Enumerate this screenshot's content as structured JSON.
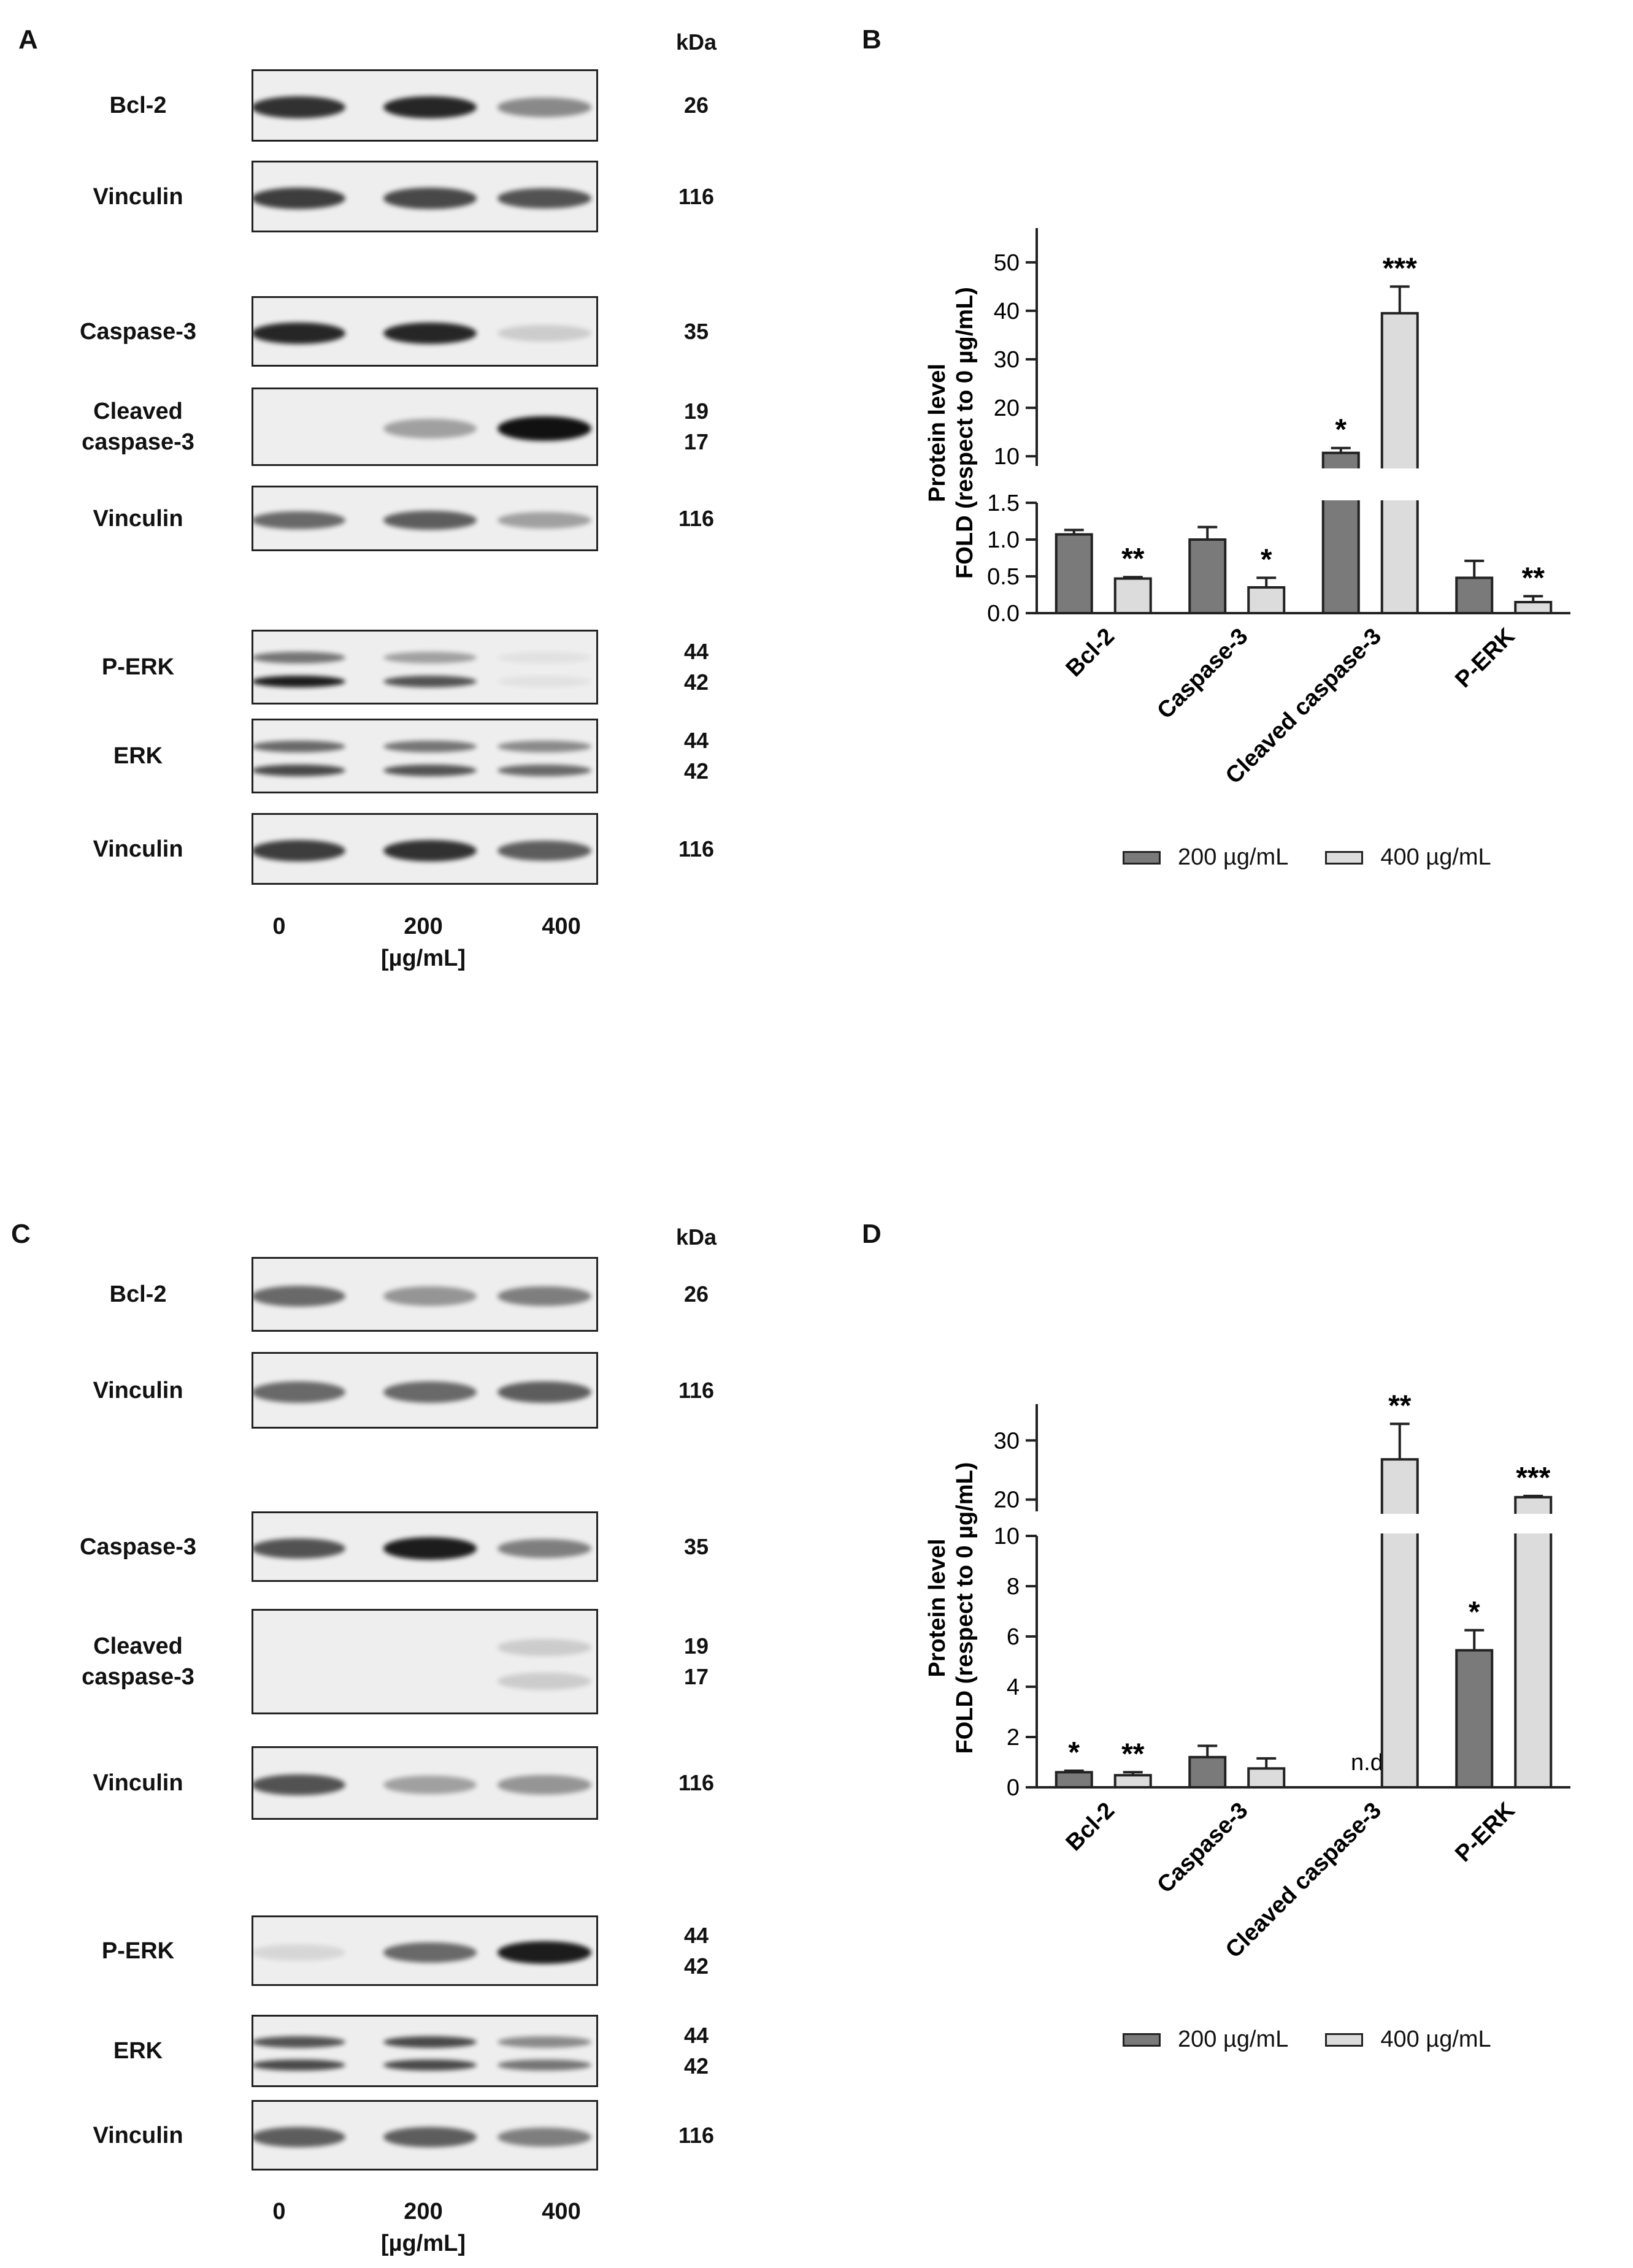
{
  "colors": {
    "series_200": "#7a7a7a",
    "series_400": "#dcdcdc",
    "band": "#111111",
    "blot_bg": "#eeeeee"
  },
  "panelA": {
    "letter": "A",
    "kda_header": "kDa",
    "lanes": [
      "0",
      "200",
      "400"
    ],
    "unit": "[µg/mL]",
    "blots": [
      {
        "label": "Bcl-2",
        "kda": "26",
        "bands": [
          [
            0.85
          ],
          [
            0.9
          ],
          [
            0.45
          ]
        ]
      },
      {
        "label": "Vinculin",
        "kda": "116",
        "bands": [
          [
            0.8
          ],
          [
            0.75
          ],
          [
            0.7
          ]
        ]
      },
      {
        "label": "Caspase-3",
        "kda": "35",
        "bands": [
          [
            0.9
          ],
          [
            0.9
          ],
          [
            0.15
          ]
        ]
      },
      {
        "label": "Cleaved caspase-3",
        "kda": "19\n17",
        "bands": [
          [
            0.0
          ],
          [
            0.35
          ],
          [
            1.0
          ]
        ]
      },
      {
        "label": "Vinculin",
        "kda": "116",
        "bands": [
          [
            0.6
          ],
          [
            0.65
          ],
          [
            0.35
          ]
        ]
      },
      {
        "label": "P-ERK",
        "kda": "44\n42",
        "bands": [
          [
            0.55,
            0.95
          ],
          [
            0.35,
            0.7
          ],
          [
            0.05,
            0.05
          ]
        ]
      },
      {
        "label": "ERK",
        "kda": "44\n42",
        "bands": [
          [
            0.6,
            0.75
          ],
          [
            0.55,
            0.7
          ],
          [
            0.45,
            0.6
          ]
        ]
      },
      {
        "label": "Vinculin",
        "kda": "116",
        "bands": [
          [
            0.8
          ],
          [
            0.85
          ],
          [
            0.65
          ]
        ]
      }
    ]
  },
  "panelC": {
    "letter": "C",
    "kda_header": "kDa",
    "lanes": [
      "0",
      "200",
      "400"
    ],
    "unit": "[µg/mL]",
    "blots": [
      {
        "label": "Bcl-2",
        "kda": "26",
        "bands": [
          [
            0.6
          ],
          [
            0.4
          ],
          [
            0.5
          ]
        ]
      },
      {
        "label": "Vinculin",
        "kda": "116",
        "bands": [
          [
            0.6
          ],
          [
            0.6
          ],
          [
            0.65
          ]
        ]
      },
      {
        "label": "Caspase-3",
        "kda": "35",
        "bands": [
          [
            0.7
          ],
          [
            0.95
          ],
          [
            0.5
          ]
        ]
      },
      {
        "label": "Cleaved caspase-3",
        "kda": "19\n17",
        "bands": [
          [
            0.0,
            0.0
          ],
          [
            0.0,
            0.0
          ],
          [
            0.15,
            0.15
          ]
        ]
      },
      {
        "label": "Vinculin",
        "kda": "116",
        "bands": [
          [
            0.7
          ],
          [
            0.35
          ],
          [
            0.4
          ]
        ]
      },
      {
        "label": "P-ERK",
        "kda": "44\n42",
        "bands": [
          [
            0.1
          ],
          [
            0.6
          ],
          [
            0.95
          ]
        ]
      },
      {
        "label": "ERK",
        "kda": "44\n42",
        "bands": [
          [
            0.7,
            0.75
          ],
          [
            0.75,
            0.75
          ],
          [
            0.45,
            0.55
          ]
        ]
      },
      {
        "label": "Vinculin",
        "kda": "116",
        "bands": [
          [
            0.65
          ],
          [
            0.65
          ],
          [
            0.5
          ]
        ]
      }
    ]
  },
  "chart_data": [
    {
      "panel": "B",
      "type": "bar",
      "ylabel_line1": "Protein level",
      "ylabel_line2": "FOLD (respect to 0 µg/mL)",
      "categories": [
        "Bcl-2",
        "Caspase-3",
        "Cleaved caspase-3",
        "P-ERK"
      ],
      "series": [
        {
          "name": "200 µg/mL",
          "values": [
            1.07,
            1.0,
            10.7,
            0.48
          ],
          "errors": [
            0.06,
            0.17,
            1.0,
            0.23
          ],
          "stars": [
            "",
            "",
            "*",
            ""
          ]
        },
        {
          "name": "400 µg/mL",
          "values": [
            0.47,
            0.35,
            39.5,
            0.15
          ],
          "errors": [
            0.02,
            0.13,
            5.5,
            0.08
          ],
          "stars": [
            "**",
            "*",
            "***",
            "**"
          ]
        }
      ],
      "y_break": {
        "lower": [
          0,
          1.5
        ],
        "upper": [
          8,
          52
        ]
      },
      "lower_ticks": [
        0.0,
        0.5,
        1.0,
        1.5
      ],
      "upper_ticks": [
        10,
        20,
        30,
        40,
        50
      ],
      "notes": [
        "",
        "",
        "",
        ""
      ]
    },
    {
      "panel": "D",
      "type": "bar",
      "ylabel_line1": "Protein level",
      "ylabel_line2": "FOLD (respect to 0 µg/mL)",
      "categories": [
        "Bcl-2",
        "Caspase-3",
        "Cleaved caspase-3",
        "P-ERK"
      ],
      "series": [
        {
          "name": "200 µg/mL",
          "values": [
            0.6,
            1.2,
            null,
            5.45
          ],
          "errors": [
            0.06,
            0.45,
            0,
            0.8
          ],
          "stars": [
            "*",
            "",
            "",
            "*"
          ]
        },
        {
          "name": "400 µg/mL",
          "values": [
            0.48,
            0.75,
            26.8,
            20.4
          ],
          "errors": [
            0.12,
            0.4,
            6.0,
            0.2
          ],
          "stars": [
            "**",
            "",
            "**",
            "***"
          ]
        }
      ],
      "y_break": {
        "lower": [
          0,
          10
        ],
        "upper": [
          18,
          32
        ]
      },
      "lower_ticks": [
        0,
        2,
        4,
        6,
        8,
        10
      ],
      "upper_ticks": [
        20,
        30
      ],
      "notes": [
        "",
        "",
        "n.d.",
        ""
      ]
    }
  ]
}
